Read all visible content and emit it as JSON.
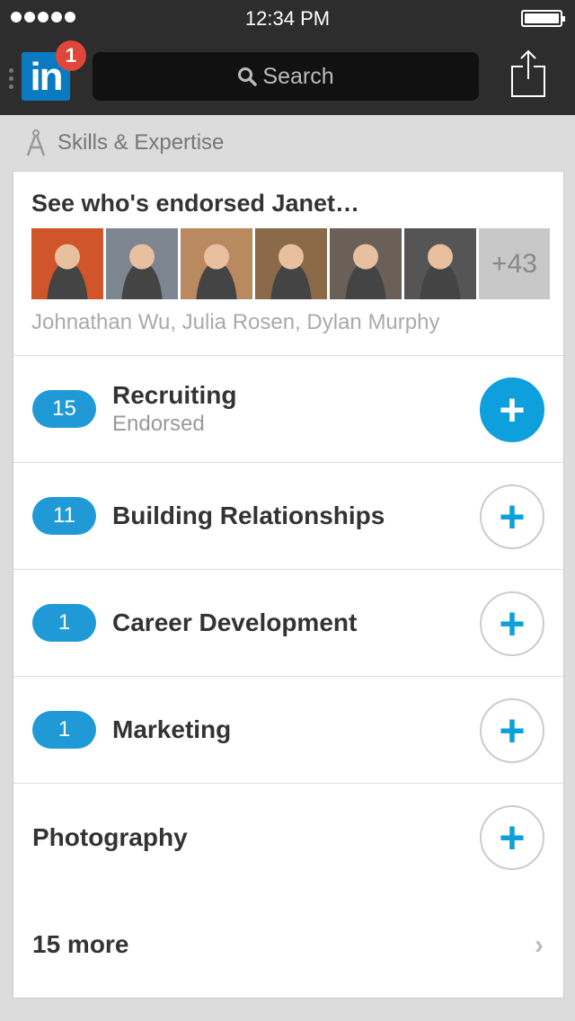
{
  "status": {
    "time": "12:34 PM"
  },
  "nav": {
    "logo": "in",
    "notification_count": "1",
    "search_placeholder": "Search"
  },
  "section": {
    "title": "Skills & Expertise",
    "icon": "compass-icon"
  },
  "endorsers": {
    "title": "See who's endorsed Janet…",
    "more_count": "+43",
    "names": "Johnathan Wu, Julia Rosen, Dylan Murphy",
    "avatar_colors": [
      "#d0552a",
      "#7d8690",
      "#b98a60",
      "#8a6a48",
      "#6b6058",
      "#555555"
    ]
  },
  "skills": [
    {
      "count": "15",
      "name": "Recruiting",
      "sub": "Endorsed",
      "endorsed": true
    },
    {
      "count": "11",
      "name": "Building Relationships",
      "sub": "",
      "endorsed": false
    },
    {
      "count": "1",
      "name": "Career Development",
      "sub": "",
      "endorsed": false
    },
    {
      "count": "1",
      "name": "Marketing",
      "sub": "",
      "endorsed": false
    },
    {
      "count": "",
      "name": "Photography",
      "sub": "",
      "endorsed": false
    }
  ],
  "more": {
    "label": "15 more"
  },
  "colors": {
    "accent": "#0ea0dc",
    "badge": "#1f9ad6",
    "notification": "#e0463a",
    "logo": "#0b7bc1"
  }
}
